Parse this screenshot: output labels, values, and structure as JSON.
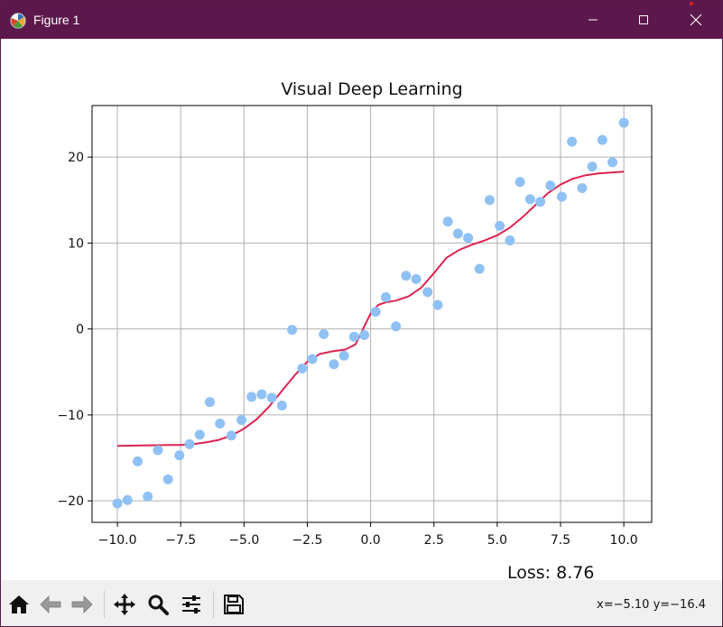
{
  "window": {
    "title": "Figure 1",
    "controls": {
      "minimize": "minimize-icon",
      "maximize": "maximize-icon",
      "close": "close-icon"
    }
  },
  "figure": {
    "loss_text": "Loss: 8.76"
  },
  "toolbar": {
    "buttons": [
      "home-icon",
      "back-arrow-icon",
      "forward-arrow-icon",
      "pan-icon",
      "zoom-icon",
      "configure-subplots-icon",
      "save-icon"
    ],
    "coords": "x=−5.10  y=−16.4"
  },
  "colors": {
    "titlebar": "#5c184c",
    "scatter": "#90c1f5",
    "line": "#dc2450",
    "grid": "#b0b0b0"
  },
  "chart_data": {
    "type": "scatter",
    "title": "Visual Deep Learning",
    "xlabel": "",
    "ylabel": "",
    "xlim": [
      -11,
      11.1
    ],
    "ylim": [
      -22.5,
      26
    ],
    "xticks": [
      -10,
      -7.5,
      -5,
      -2.5,
      0,
      2.5,
      5,
      7.5,
      10
    ],
    "xtick_labels": [
      "−10.0",
      "−7.5",
      "−5.0",
      "−2.5",
      "0.0",
      "2.5",
      "5.0",
      "7.5",
      "10.0"
    ],
    "yticks": [
      -20,
      -10,
      0,
      10,
      20
    ],
    "ytick_labels": [
      "−20",
      "−10",
      "0",
      "10",
      "20"
    ],
    "grid": true,
    "series": [
      {
        "kind": "scatter",
        "x": [
          -10,
          -9.6,
          -9.2,
          -8.8,
          -8.4,
          -8.0,
          -7.55,
          -7.15,
          -6.75,
          -6.35,
          -5.95,
          -5.5,
          -5.1,
          -4.7,
          -4.3,
          -3.9,
          -3.5,
          -3.1,
          -2.7,
          -2.3,
          -1.85,
          -1.45,
          -1.05,
          -0.65,
          -0.25,
          0.2,
          0.6,
          1.0,
          1.4,
          1.8,
          2.25,
          2.65,
          3.05,
          3.45,
          3.85,
          4.3,
          4.7,
          5.1,
          5.5,
          5.9,
          6.3,
          6.7,
          7.1,
          7.55,
          7.95,
          8.35,
          8.75,
          9.15,
          9.55,
          10.0
        ],
        "y": [
          -20.3,
          -19.9,
          -15.4,
          -19.5,
          -14.1,
          -17.5,
          -14.7,
          -13.4,
          -12.3,
          -8.5,
          -11.0,
          -12.4,
          -10.6,
          -7.9,
          -7.6,
          -8.0,
          -8.9,
          -0.1,
          -4.6,
          -3.5,
          -0.6,
          -4.1,
          -3.1,
          -0.9,
          -0.7,
          2.0,
          3.7,
          0.3,
          6.2,
          5.8,
          4.3,
          2.8,
          12.5,
          11.1,
          10.6,
          7.0,
          15.0,
          12.0,
          10.3,
          17.1,
          15.1,
          14.8,
          16.7,
          15.4,
          21.8,
          16.4,
          18.9,
          22.0,
          19.4,
          24.0
        ]
      },
      {
        "kind": "line",
        "x": [
          -10,
          -9.0,
          -8.0,
          -7.5,
          -7.0,
          -6.5,
          -6.0,
          -5.5,
          -5.0,
          -4.5,
          -4.0,
          -3.5,
          -3.0,
          -2.5,
          -2.0,
          -1.5,
          -1.0,
          -0.6,
          -0.3,
          0.0,
          0.3,
          0.6,
          1.0,
          1.5,
          2.0,
          2.5,
          3.0,
          3.5,
          4.0,
          4.5,
          5.0,
          5.5,
          6.0,
          6.5,
          7.0,
          7.5,
          8.0,
          8.5,
          9.0,
          9.5,
          10.0
        ],
        "y": [
          -13.6,
          -13.55,
          -13.5,
          -13.5,
          -13.4,
          -13.2,
          -12.9,
          -12.4,
          -11.6,
          -10.5,
          -9.0,
          -7.2,
          -5.4,
          -3.8,
          -2.9,
          -2.6,
          -2.4,
          -1.8,
          0.0,
          1.8,
          2.8,
          3.1,
          3.3,
          3.8,
          4.8,
          6.5,
          8.3,
          9.2,
          9.8,
          10.3,
          10.9,
          11.8,
          13.0,
          14.4,
          15.8,
          16.8,
          17.5,
          17.9,
          18.1,
          18.2,
          18.3
        ]
      }
    ]
  }
}
